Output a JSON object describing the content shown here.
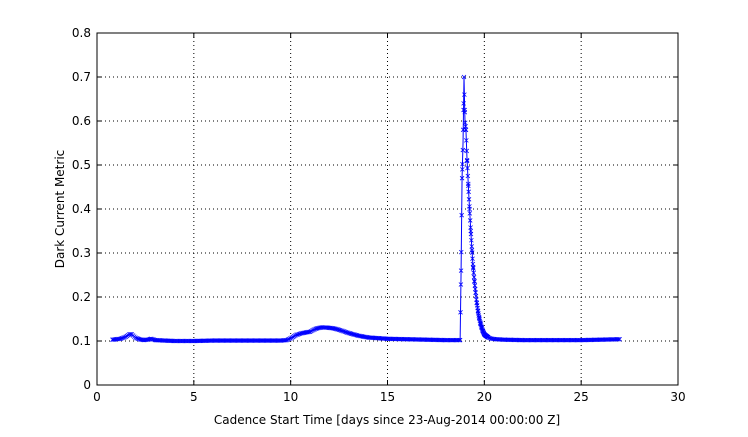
{
  "chart_data": {
    "type": "line",
    "title": "",
    "xlabel": "Cadence Start Time [days since 23-Aug-2014 00:00:00 Z]",
    "ylabel": "Dark Current Metric",
    "xlim": [
      0,
      30
    ],
    "ylim": [
      0,
      0.8
    ],
    "x_ticks": [
      0,
      5,
      10,
      15,
      20,
      25,
      30
    ],
    "y_ticks": [
      0,
      0.1,
      0.2,
      0.3,
      0.4,
      0.5,
      0.6,
      0.7,
      0.8
    ],
    "x_tick_labels": [
      "0",
      "5",
      "10",
      "15",
      "20",
      "25",
      "30"
    ],
    "y_tick_labels": [
      "0",
      "0.1",
      "0.2",
      "0.3",
      "0.4",
      "0.5",
      "0.6",
      "0.7",
      "0.8"
    ],
    "grid": true,
    "legend": "none",
    "series": [
      {
        "color": "#0000ff",
        "marker": "x",
        "x": [
          0.8,
          1.0,
          1.2,
          1.4,
          1.5,
          1.6,
          1.7,
          1.8,
          1.9,
          2.0,
          2.2,
          2.4,
          2.6,
          2.8,
          3.0,
          3.5,
          4.0,
          5.0,
          6.0,
          7.0,
          8.0,
          9.0,
          9.5,
          9.8,
          10.0,
          10.3,
          10.6,
          11.0,
          11.3,
          11.6,
          12.0,
          12.3,
          12.6,
          13.0,
          13.5,
          14.0,
          15.0,
          16.0,
          17.0,
          18.0,
          18.5,
          18.75,
          18.8,
          18.85,
          18.9,
          18.95,
          19.0,
          19.05,
          19.1,
          19.2,
          19.3,
          19.4,
          19.5,
          19.6,
          19.7,
          19.8,
          19.9,
          20.0,
          20.2,
          20.4,
          20.6,
          21.0,
          22.0,
          23.0,
          24.0,
          25.0,
          26.0,
          27.0
        ],
        "y": [
          0.103,
          0.104,
          0.105,
          0.108,
          0.11,
          0.113,
          0.116,
          0.115,
          0.111,
          0.107,
          0.104,
          0.102,
          0.103,
          0.105,
          0.102,
          0.101,
          0.1,
          0.1,
          0.101,
          0.101,
          0.101,
          0.101,
          0.101,
          0.102,
          0.106,
          0.114,
          0.118,
          0.121,
          0.128,
          0.131,
          0.13,
          0.128,
          0.124,
          0.118,
          0.112,
          0.108,
          0.105,
          0.104,
          0.103,
          0.102,
          0.102,
          0.102,
          0.26,
          0.47,
          0.55,
          0.7,
          0.6,
          0.58,
          0.52,
          0.43,
          0.35,
          0.28,
          0.23,
          0.19,
          0.16,
          0.14,
          0.125,
          0.115,
          0.108,
          0.105,
          0.104,
          0.103,
          0.102,
          0.102,
          0.102,
          0.102,
          0.103,
          0.104
        ]
      }
    ]
  }
}
